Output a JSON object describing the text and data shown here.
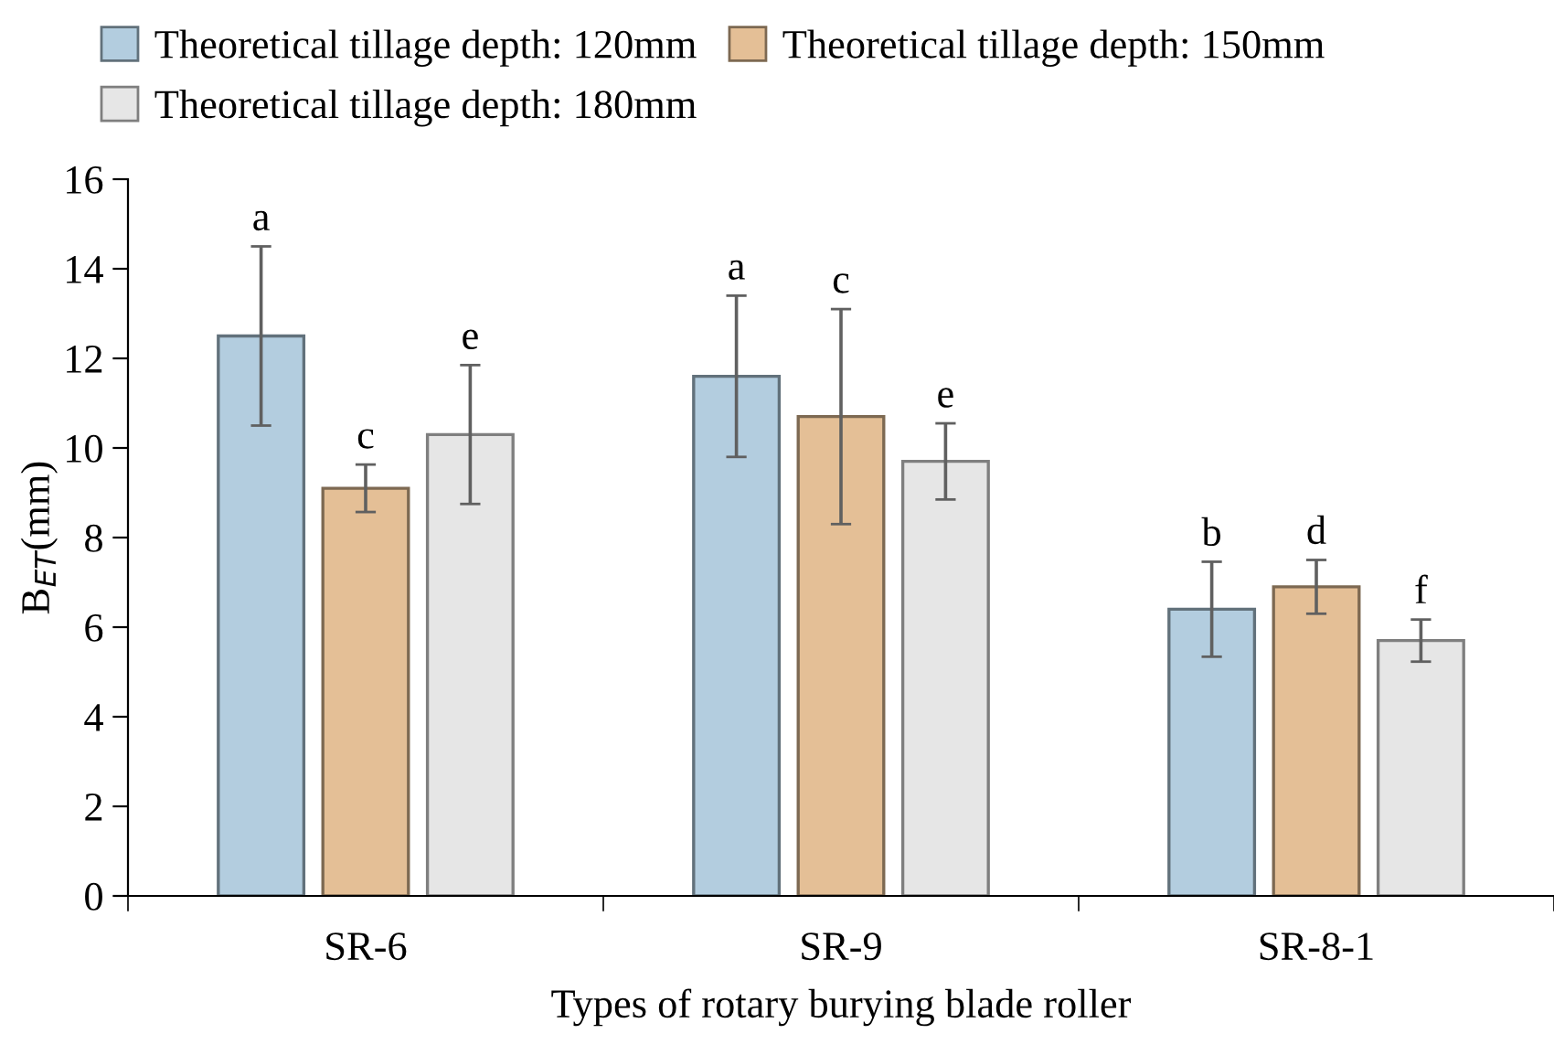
{
  "chart_data": {
    "type": "bar",
    "xlabel": "Types of rotary burying blade roller",
    "ylabel": "B$_{ET}$(mm)",
    "categories": [
      "SR-6",
      "SR-9",
      "SR-8-1"
    ],
    "series": [
      {
        "name": "Theoretical tillage depth: 120mm",
        "color": "#b3cddf",
        "values": [
          12.5,
          11.6,
          6.4
        ],
        "errors": [
          2.0,
          1.8,
          1.06
        ]
      },
      {
        "name": "Theoretical tillage depth: 150mm",
        "color": "#e4bf96",
        "values": [
          9.1,
          10.7,
          6.9
        ],
        "errors": [
          0.53,
          2.4,
          0.6
        ]
      },
      {
        "name": "Theoretical tillage depth: 180mm",
        "color": "#e6e6e6",
        "values": [
          10.3,
          9.7,
          5.7
        ],
        "errors": [
          1.55,
          0.85,
          0.47
        ]
      }
    ],
    "annotations": [
      "a",
      "c",
      "e",
      "a",
      "c",
      "e",
      "b",
      "d",
      "f"
    ],
    "ylim": [
      0,
      16
    ],
    "yticks": [
      0,
      2,
      4,
      6,
      8,
      10,
      12,
      14,
      16
    ],
    "grid": false,
    "legend": "top"
  }
}
